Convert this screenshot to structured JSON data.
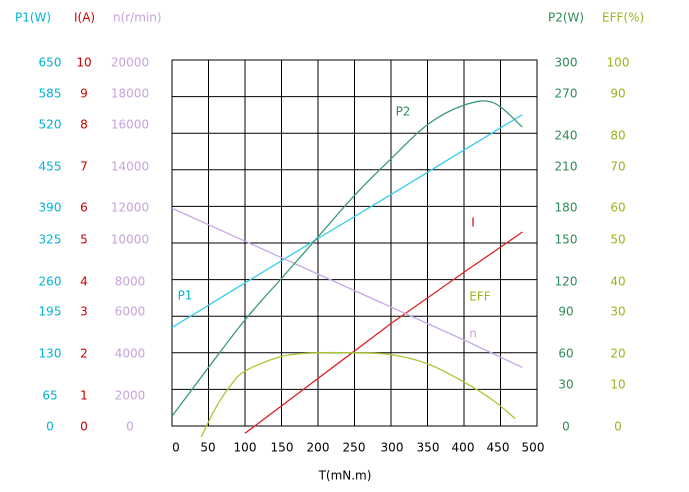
{
  "chart_data": {
    "type": "line",
    "title": "",
    "x": {
      "label": "T(mN.m)",
      "range": [
        0,
        500
      ],
      "ticks": [
        "0",
        "50",
        "100",
        "150",
        "200",
        "250",
        "300",
        "350",
        "400",
        "450",
        "500"
      ]
    },
    "axes": {
      "P1": {
        "label": "P1(W)",
        "color": "#00b4d8",
        "range": [
          0,
          650
        ],
        "ticks": [
          {
            "v": 0,
            "t": "0"
          },
          {
            "v": 65,
            "t": "65"
          },
          {
            "v": 130,
            "t": "130"
          },
          {
            "v": 195,
            "t": "195"
          },
          {
            "v": 260,
            "t": "260"
          },
          {
            "v": 325,
            "t": "325"
          },
          {
            "v": 390,
            "t": "390"
          },
          {
            "v": 455,
            "t": "455"
          },
          {
            "v": 520,
            "t": "520"
          },
          {
            "v": 585,
            "t": "585"
          },
          {
            "v": 650,
            "t": "650"
          }
        ]
      },
      "I": {
        "label": "I(A)",
        "color": "#cc0000",
        "range": [
          0,
          10
        ],
        "ticks": [
          {
            "v": 0,
            "t": "0"
          },
          {
            "v": 1,
            "t": "1"
          },
          {
            "v": 2,
            "t": "2"
          },
          {
            "v": 3,
            "t": "3"
          },
          {
            "v": 4,
            "t": "4"
          },
          {
            "v": 5,
            "t": "5"
          },
          {
            "v": 6,
            "t": "6"
          },
          {
            "v": 7,
            "t": "7"
          },
          {
            "v": 8,
            "t": "8"
          },
          {
            "v": 9,
            "t": "9"
          },
          {
            "v": 10,
            "t": "10"
          }
        ]
      },
      "n": {
        "label": "n(r/min)",
        "color": "#c8a2dc",
        "range": [
          0,
          20000
        ],
        "ticks": [
          {
            "v": 0,
            "t": "0"
          },
          {
            "v": 2000,
            "t": "2000"
          },
          {
            "v": 4000,
            "t": "4000"
          },
          {
            "v": 6000,
            "t": "6000"
          },
          {
            "v": 8000,
            "t": "8000"
          },
          {
            "v": 10000,
            "t": "10000"
          },
          {
            "v": 12000,
            "t": "12000"
          },
          {
            "v": 14000,
            "t": "14000"
          },
          {
            "v": 16000,
            "t": "16000"
          },
          {
            "v": 18000,
            "t": "18000"
          },
          {
            "v": 20000,
            "t": "20000"
          }
        ]
      },
      "P2": {
        "label": "P2(W)",
        "color": "#2e8b57",
        "range": [
          0,
          300
        ],
        "ticks": [
          {
            "v": 0,
            "t": "0"
          },
          {
            "v": 30,
            "t": "30"
          },
          {
            "v": 60,
            "t": "60"
          },
          {
            "v": 90,
            "t": "90"
          },
          {
            "v": 120,
            "t": "120"
          },
          {
            "v": 150,
            "t": "150"
          },
          {
            "v": 180,
            "t": "180"
          },
          {
            "v": 210,
            "t": "210"
          },
          {
            "v": 240,
            "t": "240"
          },
          {
            "v": 270,
            "t": "270"
          },
          {
            "v": 300,
            "t": "300"
          }
        ]
      },
      "EFF": {
        "label": "EFF(%)",
        "color": "#9ab41e",
        "range": [
          0,
          100
        ],
        "ticks": [
          {
            "v": 0,
            "t": "0"
          },
          {
            "v": 10,
            "t": "10"
          },
          {
            "v": 20,
            "t": "20"
          },
          {
            "v": 30,
            "t": "30"
          },
          {
            "v": 40,
            "t": "40"
          },
          {
            "v": 50,
            "t": "50"
          },
          {
            "v": 60,
            "t": "60"
          },
          {
            "v": 70,
            "t": "70"
          },
          {
            "v": 80,
            "t": "80"
          },
          {
            "v": 90,
            "t": "90"
          },
          {
            "v": 100,
            "t": "100"
          }
        ]
      }
    },
    "series": [
      {
        "name": "P1",
        "axis": "P1",
        "color": "#33ccee",
        "x": [
          0,
          100,
          200,
          300,
          400,
          480
        ],
        "y": [
          175,
          254,
          333,
          411,
          490,
          553
        ]
      },
      {
        "name": "I",
        "axis": "I",
        "color": "#dd2222",
        "x": [
          100,
          200,
          300,
          400,
          480
        ],
        "y": [
          -0.2,
          1.3,
          2.8,
          4.2,
          5.3
        ]
      },
      {
        "name": "n",
        "axis": "n",
        "color": "#c8a8e4",
        "x": [
          0,
          100,
          200,
          300,
          400,
          480
        ],
        "y": [
          11900,
          10100,
          8300,
          6500,
          4700,
          3200
        ]
      },
      {
        "name": "P2",
        "axis": "P2",
        "color": "#3c9a78",
        "x": [
          0,
          50,
          100,
          150,
          200,
          250,
          300,
          350,
          400,
          440,
          480
        ],
        "y": [
          8,
          48,
          87,
          121,
          155,
          189,
          219,
          247,
          263,
          265,
          245
        ]
      },
      {
        "name": "EFF",
        "axis": "EFF",
        "color": "#a8c832",
        "x": [
          40,
          60,
          80,
          100,
          150,
          200,
          250,
          300,
          350,
          400,
          440,
          470
        ],
        "y": [
          -3,
          5,
          11,
          15,
          19,
          20,
          20,
          19.5,
          17,
          12,
          7,
          2
        ]
      }
    ],
    "annotations": [
      {
        "text": "P1",
        "series": "P1",
        "color": "#00b4d8"
      },
      {
        "text": "I",
        "series": "I",
        "color": "#cc0000"
      },
      {
        "text": "n",
        "series": "n",
        "color": "#c8a2dc"
      },
      {
        "text": "P2",
        "series": "P2",
        "color": "#2e8b57"
      },
      {
        "text": "EFF",
        "series": "EFF",
        "color": "#9ab41e"
      }
    ],
    "grid": true,
    "legend": "none"
  }
}
